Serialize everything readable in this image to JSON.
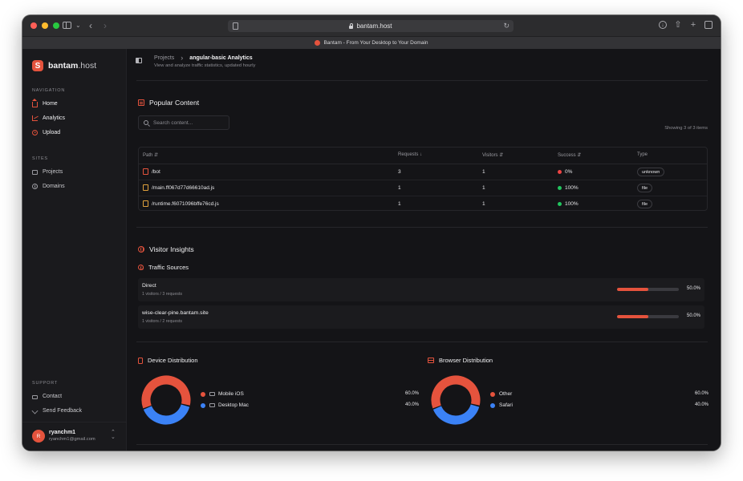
{
  "browser": {
    "url": "bantam.host",
    "tab_title": "Bantam - From Your Desktop to Your Domain"
  },
  "colors": {
    "accent": "#e5533d",
    "blue": "#3b82f6",
    "success": "#22c55e",
    "error": "#ef4444"
  },
  "sidebar": {
    "brand_bold": "bantam",
    "brand_rest": ".host",
    "sections": {
      "navigation": "NAVIGATION",
      "sites": "SITES",
      "support": "SUPPORT"
    },
    "nav": [
      {
        "label": "Home",
        "icon": "home-icon"
      },
      {
        "label": "Analytics",
        "icon": "chart-icon"
      },
      {
        "label": "Upload",
        "icon": "upload-icon"
      }
    ],
    "sites": [
      {
        "label": "Projects",
        "icon": "folder-icon"
      },
      {
        "label": "Domains",
        "icon": "globe-icon"
      }
    ],
    "support": [
      {
        "label": "Contact",
        "icon": "mail-icon"
      },
      {
        "label": "Send Feedback",
        "icon": "send-icon"
      }
    ],
    "user": {
      "initial": "R",
      "name": "ryanchm1",
      "email": "ryanchm1@gmail.com"
    }
  },
  "header": {
    "breadcrumb_parent": "Projects",
    "title": "angular-basic Analytics",
    "subtitle": "View and analyze traffic statistics, updated hourly"
  },
  "popular": {
    "title": "Popular Content",
    "search_placeholder": "Search content...",
    "showing": "Showing 3 of 3 items",
    "columns": {
      "path": "Path",
      "requests": "Requests",
      "visitors": "Visitors",
      "success": "Success",
      "type": "Type"
    },
    "rows": [
      {
        "path": "/bot",
        "requests": "3",
        "visitors": "1",
        "success": "0%",
        "success_color": "#ef4444",
        "type": "unknown",
        "icon_color": "red"
      },
      {
        "path": "/main.ff067d77d66610ad.js",
        "requests": "1",
        "visitors": "1",
        "success": "100%",
        "success_color": "#22c55e",
        "type": "file",
        "icon_color": "amber"
      },
      {
        "path": "/runtime.f6071096bffe76cd.js",
        "requests": "1",
        "visitors": "1",
        "success": "100%",
        "success_color": "#22c55e",
        "type": "file",
        "icon_color": "amber"
      }
    ]
  },
  "insights": {
    "title": "Visitor Insights",
    "traffic_title": "Traffic Sources",
    "sources": [
      {
        "name": "Direct",
        "meta": "1 visitors / 3 requests",
        "percent": "50.0%",
        "fraction": 0.5
      },
      {
        "name": "wise-clear-pine.bantam.site",
        "meta": "1 visitors / 2 requests",
        "percent": "50.0%",
        "fraction": 0.5
      }
    ]
  },
  "device": {
    "title": "Device Distribution",
    "items": [
      {
        "label": "Mobile iOS",
        "percent": "60.0%",
        "value": 60,
        "color": "#e5533d"
      },
      {
        "label": "Desktop Mac",
        "percent": "40.0%",
        "value": 40,
        "color": "#3b82f6"
      }
    ]
  },
  "browser_dist": {
    "title": "Browser Distribution",
    "items": [
      {
        "label": "Other",
        "percent": "60.0%",
        "value": 60,
        "color": "#e5533d"
      },
      {
        "label": "Safari",
        "percent": "40.0%",
        "value": 40,
        "color": "#3b82f6"
      }
    ]
  }
}
